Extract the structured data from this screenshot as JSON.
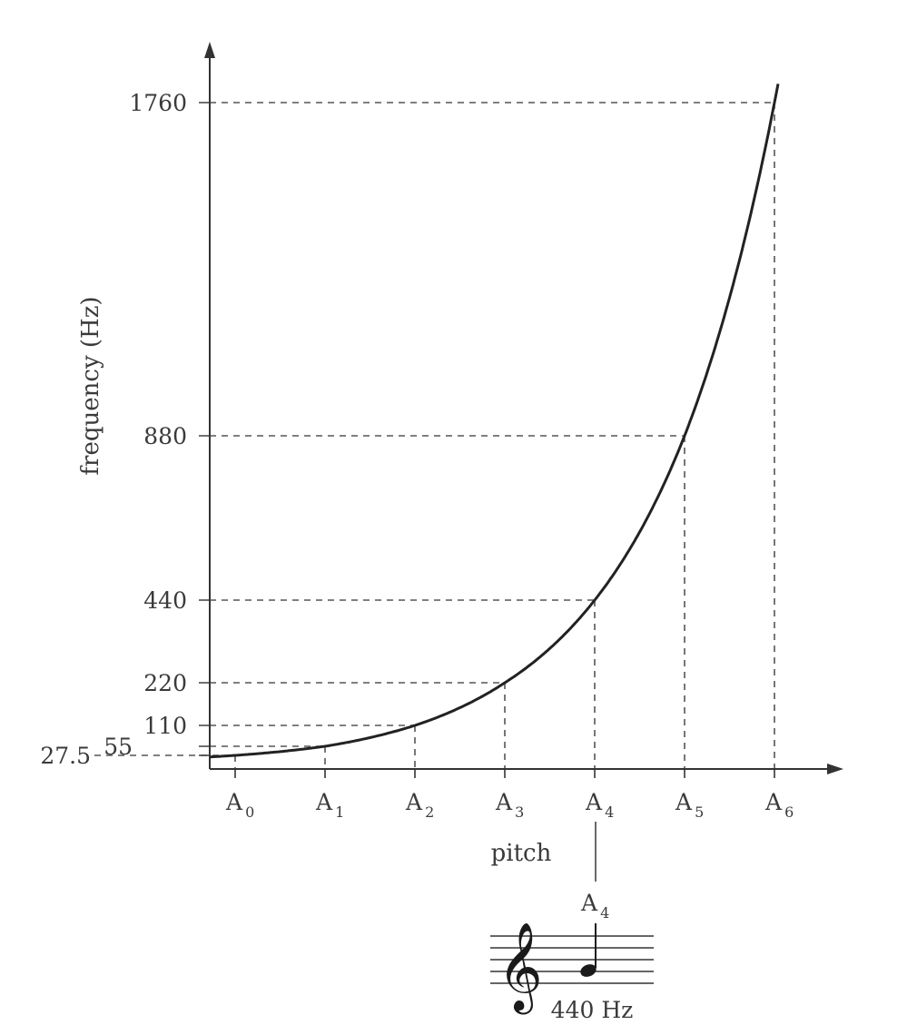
{
  "chart_data": {
    "type": "line",
    "xlabel": "pitch",
    "ylabel": "frequency (Hz)",
    "categories": [
      "A0",
      "A1",
      "A2",
      "A3",
      "A4",
      "A5",
      "A6"
    ],
    "tick_labels": [
      {
        "letter": "A",
        "sub": "0"
      },
      {
        "letter": "A",
        "sub": "1"
      },
      {
        "letter": "A",
        "sub": "2"
      },
      {
        "letter": "A",
        "sub": "3"
      },
      {
        "letter": "A",
        "sub": "4"
      },
      {
        "letter": "A",
        "sub": "5"
      },
      {
        "letter": "A",
        "sub": "6"
      }
    ],
    "x": [
      0,
      1,
      2,
      3,
      4,
      5,
      6
    ],
    "values": [
      27.5,
      55,
      110,
      220,
      440,
      880,
      1760
    ],
    "y_ticks": [
      27.5,
      55,
      110,
      220,
      440,
      880,
      1760
    ],
    "y_tick_labels": [
      "27.5",
      "55",
      "110",
      "220",
      "440",
      "880",
      "1760"
    ],
    "ylim": [
      0,
      1760
    ],
    "xlim": [
      0,
      6
    ],
    "grid": false,
    "guides": "dashed lines from each point to both axes"
  },
  "notation": {
    "note_label_letter": "A",
    "note_label_sub": "4",
    "note_frequency": "440 Hz",
    "clef_glyph": "𝄞"
  }
}
